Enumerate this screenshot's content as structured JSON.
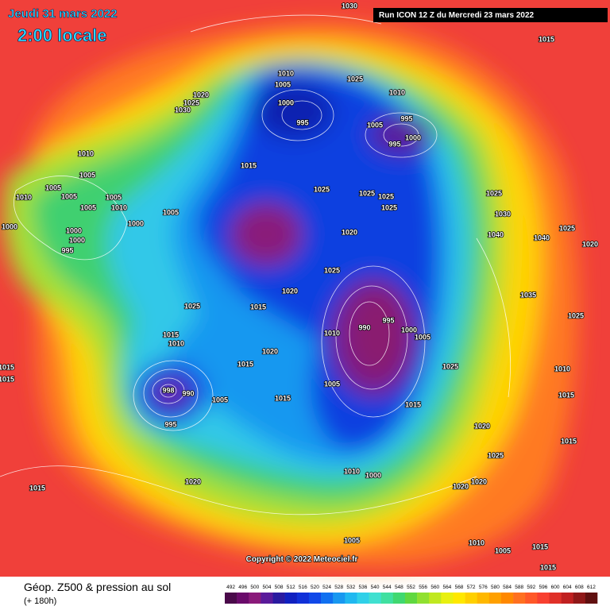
{
  "header": {
    "date": "Jeudi 31 mars 2022",
    "time": "2:00 locale",
    "run": "Run ICON 12 Z du Mercredi 23 mars 2022"
  },
  "copyright": "Copyright © 2022 Meteociel.fr",
  "footer": {
    "title": "Géop. Z500 & pression au sol",
    "lead": "(+ 180h)"
  },
  "colorbar": {
    "labels": [
      492,
      496,
      500,
      504,
      508,
      512,
      516,
      520,
      524,
      528,
      532,
      536,
      540,
      544,
      548,
      552,
      556,
      560,
      564,
      568,
      572,
      576,
      580,
      584,
      588,
      592,
      596,
      600,
      604,
      608,
      612
    ],
    "colors": [
      "#4a0a4a",
      "#6a0a6a",
      "#8a1a7a",
      "#5a1a9a",
      "#2a1aa0",
      "#1020c0",
      "#1030d8",
      "#1048e8",
      "#1070f0",
      "#1898f0",
      "#20b8f0",
      "#30d0e8",
      "#40e0d0",
      "#40e0a0",
      "#40d870",
      "#60d840",
      "#90e030",
      "#c0e820",
      "#e8f010",
      "#ffe800",
      "#ffd000",
      "#ffb800",
      "#ffa000",
      "#ff8800",
      "#ff7020",
      "#ff5828",
      "#f84030",
      "#e03028",
      "#c02020",
      "#901818",
      "#601010"
    ]
  },
  "isobar_labels": [
    "1030",
    "1015",
    "1010",
    "1005",
    "1025",
    "1020",
    "1025",
    "1030",
    "1000",
    "995",
    "1010",
    "995",
    "1005",
    "1000",
    "995",
    "1010",
    "1005",
    "1015",
    "1010",
    "1005",
    "1005",
    "1005",
    "1010",
    "1005",
    "1025",
    "1025",
    "1025",
    "1025",
    "1025",
    "1030",
    "1005",
    "1000",
    "1000",
    "1000",
    "1000",
    "995",
    "1020",
    "1040",
    "1040",
    "1025",
    "1020",
    "1025",
    "1020",
    "1015",
    "1025",
    "1035",
    "990",
    "995",
    "1000",
    "1005",
    "1010",
    "1015",
    "1010",
    "1020",
    "1015",
    "1025",
    "1005",
    "1015",
    "1015",
    "1005",
    "998",
    "990",
    "995",
    "1015",
    "1015",
    "1020",
    "1025",
    "1015",
    "1010",
    "1000",
    "1020",
    "1020",
    "1020",
    "1015",
    "1005",
    "1010",
    "1005",
    "1015",
    "1015",
    "1025",
    "1010",
    "1015"
  ]
}
